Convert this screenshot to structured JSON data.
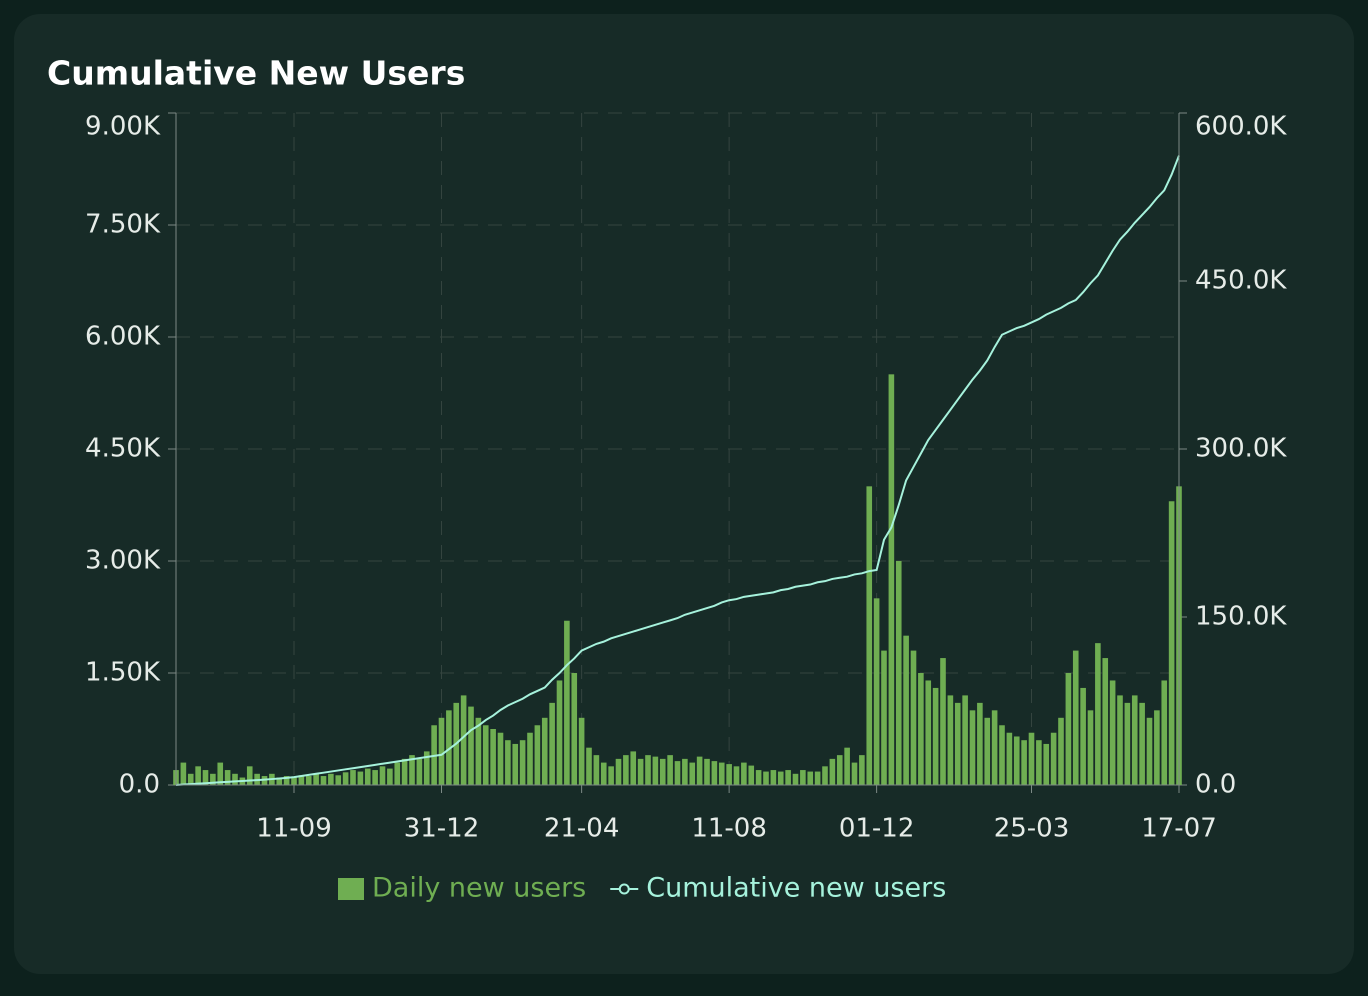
{
  "chart_data": {
    "type": "bar",
    "title": "Cumulative New Users",
    "categories": [
      null,
      null,
      null,
      null,
      null,
      null,
      null,
      null,
      null,
      null,
      null,
      null,
      null,
      null,
      null,
      null,
      "11-09",
      null,
      null,
      null,
      null,
      null,
      null,
      null,
      null,
      null,
      null,
      null,
      null,
      null,
      null,
      null,
      null,
      null,
      null,
      null,
      "31-12",
      null,
      null,
      null,
      null,
      null,
      null,
      null,
      null,
      null,
      null,
      null,
      null,
      null,
      null,
      null,
      null,
      null,
      null,
      "21-04",
      null,
      null,
      null,
      null,
      null,
      null,
      null,
      null,
      null,
      null,
      null,
      null,
      null,
      null,
      null,
      null,
      null,
      null,
      null,
      "11-08",
      null,
      null,
      null,
      null,
      null,
      null,
      null,
      null,
      null,
      null,
      null,
      null,
      null,
      null,
      null,
      null,
      null,
      null,
      null,
      "01-12",
      null,
      null,
      null,
      null,
      null,
      null,
      null,
      null,
      null,
      null,
      null,
      null,
      null,
      null,
      null,
      null,
      null,
      null,
      null,
      null,
      "25-03",
      null,
      null,
      null,
      null,
      null,
      null,
      null,
      null,
      null,
      null,
      null,
      null,
      null,
      null,
      null,
      null,
      null,
      null,
      null,
      "17-07"
    ],
    "series": [
      {
        "name": "Daily new users",
        "type": "bar",
        "color": "#6fae52",
        "values": [
          200,
          300,
          150,
          250,
          200,
          150,
          300,
          200,
          150,
          100,
          250,
          150,
          120,
          150,
          100,
          120,
          100,
          130,
          120,
          150,
          120,
          150,
          130,
          170,
          200,
          180,
          220,
          200,
          250,
          220,
          300,
          350,
          400,
          350,
          450,
          800,
          900,
          1000,
          1100,
          1200,
          1050,
          900,
          800,
          750,
          700,
          600,
          550,
          600,
          700,
          800,
          900,
          1100,
          1400,
          2200,
          1500,
          900,
          500,
          400,
          300,
          250,
          350,
          400,
          450,
          350,
          400,
          380,
          350,
          400,
          320,
          350,
          300,
          380,
          350,
          320,
          300,
          280,
          250,
          300,
          260,
          200,
          180,
          200,
          180,
          200,
          150,
          200,
          180,
          180,
          250,
          350,
          400,
          500,
          300,
          400,
          4000,
          2500,
          1800,
          5500,
          3000,
          2000,
          1800,
          1500,
          1400,
          1300,
          1700,
          1200,
          1100,
          1200,
          1000,
          1100,
          900,
          1000,
          800,
          700,
          650,
          600,
          700,
          600,
          550,
          700,
          900,
          1500,
          1800,
          1300,
          1000,
          1900,
          1700,
          1400,
          1200,
          1100,
          1200,
          1100,
          900,
          1000,
          1400,
          3800,
          4000
        ]
      },
      {
        "name": "Cumulative new users",
        "type": "line",
        "axis": "y2",
        "color": "#a6f2dc",
        "values": [
          0,
          400,
          800,
          1200,
          1600,
          2000,
          2400,
          2800,
          3200,
          3600,
          4000,
          4400,
          4800,
          5300,
          5800,
          6400,
          7000,
          8000,
          9000,
          10000,
          11000,
          12000,
          13000,
          14000,
          15000,
          16000,
          17000,
          18000,
          19000,
          20000,
          21000,
          22000,
          23000,
          24000,
          25000,
          26000,
          27000,
          32000,
          37000,
          43000,
          49000,
          53000,
          58000,
          62000,
          67000,
          71000,
          74000,
          77000,
          81000,
          84000,
          87000,
          94000,
          100000,
          107000,
          113000,
          120000,
          123000,
          126000,
          128000,
          131000,
          133000,
          135000,
          137000,
          139000,
          141000,
          143000,
          145000,
          147000,
          149000,
          152000,
          154000,
          156000,
          158000,
          160000,
          163000,
          165000,
          166000,
          168000,
          169000,
          170000,
          171000,
          172000,
          174000,
          175000,
          177000,
          178000,
          179000,
          181000,
          182000,
          184000,
          185000,
          186000,
          188000,
          189000,
          191000,
          192000,
          219000,
          230000,
          250000,
          272000,
          284000,
          296000,
          308000,
          317000,
          326000,
          335000,
          344000,
          353000,
          362000,
          370000,
          379000,
          391000,
          402000,
          405000,
          408000,
          410000,
          413000,
          416000,
          420000,
          423000,
          426000,
          430000,
          433000,
          440000,
          448000,
          455000,
          466000,
          477000,
          487000,
          494000,
          502000,
          509000,
          516000,
          524000,
          531000,
          545000,
          562000
        ]
      }
    ],
    "ylim": [
      0,
      9000
    ],
    "yticks": [
      {
        "value": 0,
        "label": "0.0"
      },
      {
        "value": 1500,
        "label": "1.50K"
      },
      {
        "value": 3000,
        "label": "3.00K"
      },
      {
        "value": 4500,
        "label": "4.50K"
      },
      {
        "value": 6000,
        "label": "6.00K"
      },
      {
        "value": 7500,
        "label": "7.50K"
      },
      {
        "value": 9000,
        "label": "9.00K"
      }
    ],
    "y2lim": [
      0,
      600000
    ],
    "y2ticks": [
      {
        "value": 0,
        "label": "0.0"
      },
      {
        "value": 150000,
        "label": "150.0K"
      },
      {
        "value": 300000,
        "label": "300.0K"
      },
      {
        "value": 450000,
        "label": "450.0K"
      },
      {
        "value": 600000,
        "label": "600.0K"
      }
    ],
    "grid": true
  }
}
